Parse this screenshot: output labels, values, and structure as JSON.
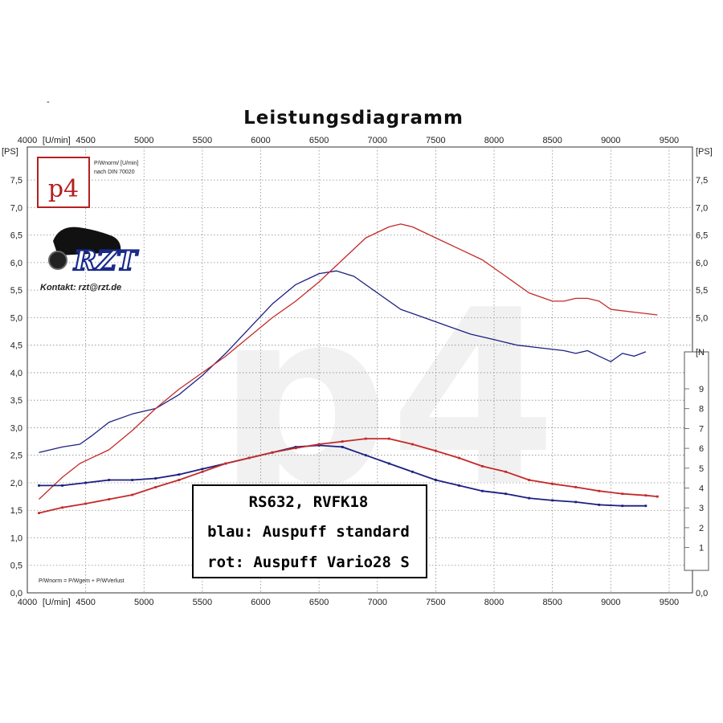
{
  "chart_data": {
    "type": "line",
    "title": "Leistungsdiagramm",
    "x_unit_label": "[U/min]",
    "y_unit_label": "[PS]",
    "right_unit_label": "[N",
    "xlim": [
      4000,
      9700
    ],
    "ylim": [
      0,
      8.1
    ],
    "x_ticks": [
      "4000",
      "4500",
      "5000",
      "5500",
      "6000",
      "6500",
      "7000",
      "7500",
      "8000",
      "8500",
      "9000",
      "9500"
    ],
    "y_ticks": [
      "0,0",
      "0,5",
      "1,0",
      "1,5",
      "2,0",
      "2,5",
      "3,0",
      "3,5",
      "4,0",
      "4,5",
      "5,0",
      "5,5",
      "6,0",
      "6,5",
      "7,0",
      "7,5"
    ],
    "y_ticks_top": "[PS]",
    "right_ticks_upper": [
      "7,5",
      "7,0",
      "6,5",
      "6,0",
      "5,5",
      "5,0"
    ],
    "right_ticks_lower": [
      "1",
      "2",
      "3",
      "4",
      "5",
      "6",
      "7",
      "8",
      "9"
    ],
    "right_tick_bottom": "0,0",
    "grid": true,
    "watermark": "p4",
    "logo": {
      "brand": "p4",
      "note_line1": "P/Wnorm/ [U/min]",
      "note_line2": "nach DIN 70020",
      "rzt_text": "RZT",
      "contact": "Kontakt: rzt@rzt.de"
    },
    "formula_note": "P/Wnorm = P/Wgem + P/WVerlust",
    "annotation": [
      "RS632, RVFK18",
      "blau: Auspuff standard",
      "rot: Auspuff Vario28 S"
    ],
    "series": [
      {
        "name": "Leistung blau (Auspuff standard)",
        "color": "#1c2080",
        "kind": "power",
        "x": [
          4100,
          4300,
          4450,
          4550,
          4700,
          4900,
          5100,
          5300,
          5500,
          5700,
          5900,
          6100,
          6300,
          6500,
          6650,
          6800,
          7000,
          7200,
          7400,
          7600,
          7800,
          8000,
          8200,
          8400,
          8600,
          8700,
          8800,
          8900,
          9000,
          9100,
          9200,
          9300
        ],
        "y": [
          2.55,
          2.65,
          2.7,
          2.85,
          3.1,
          3.25,
          3.35,
          3.6,
          3.95,
          4.35,
          4.8,
          5.25,
          5.6,
          5.8,
          5.85,
          5.75,
          5.45,
          5.15,
          5.0,
          4.85,
          4.7,
          4.6,
          4.5,
          4.45,
          4.4,
          4.35,
          4.4,
          4.3,
          4.2,
          4.35,
          4.3,
          4.38
        ]
      },
      {
        "name": "Leistung rot (Auspuff Vario28 S)",
        "color": "#c42a2a",
        "kind": "power",
        "x": [
          4100,
          4300,
          4450,
          4550,
          4700,
          4900,
          5100,
          5300,
          5500,
          5700,
          5900,
          6100,
          6300,
          6500,
          6700,
          6900,
          7100,
          7200,
          7300,
          7500,
          7700,
          7900,
          8100,
          8300,
          8500,
          8600,
          8700,
          8800,
          8900,
          9000,
          9200,
          9400
        ],
        "y": [
          1.7,
          2.1,
          2.35,
          2.45,
          2.6,
          2.95,
          3.35,
          3.7,
          4.0,
          4.3,
          4.65,
          5.0,
          5.3,
          5.65,
          6.05,
          6.45,
          6.65,
          6.7,
          6.65,
          6.45,
          6.25,
          6.05,
          5.75,
          5.45,
          5.3,
          5.3,
          5.35,
          5.35,
          5.3,
          5.15,
          5.1,
          5.05
        ]
      },
      {
        "name": "Drehmoment blau",
        "color": "#1c2080",
        "kind": "torque",
        "x": [
          4100,
          4300,
          4500,
          4700,
          4900,
          5100,
          5300,
          5500,
          5700,
          5900,
          6100,
          6300,
          6500,
          6700,
          6900,
          7100,
          7300,
          7500,
          7700,
          7900,
          8100,
          8300,
          8500,
          8700,
          8900,
          9100,
          9300
        ],
        "y": [
          1.95,
          1.95,
          2.0,
          2.05,
          2.05,
          2.08,
          2.15,
          2.25,
          2.35,
          2.45,
          2.55,
          2.65,
          2.68,
          2.65,
          2.5,
          2.35,
          2.2,
          2.05,
          1.95,
          1.85,
          1.8,
          1.72,
          1.68,
          1.65,
          1.6,
          1.58,
          1.58
        ]
      },
      {
        "name": "Drehmoment rot",
        "color": "#c42a2a",
        "kind": "torque",
        "x": [
          4100,
          4300,
          4500,
          4700,
          4900,
          5100,
          5300,
          5500,
          5700,
          5900,
          6100,
          6300,
          6500,
          6700,
          6900,
          7100,
          7300,
          7500,
          7700,
          7900,
          8100,
          8300,
          8500,
          8700,
          8900,
          9100,
          9300,
          9400
        ],
        "y": [
          1.45,
          1.55,
          1.62,
          1.7,
          1.78,
          1.92,
          2.05,
          2.2,
          2.35,
          2.45,
          2.55,
          2.63,
          2.7,
          2.75,
          2.8,
          2.8,
          2.7,
          2.58,
          2.45,
          2.3,
          2.2,
          2.05,
          1.98,
          1.92,
          1.85,
          1.8,
          1.77,
          1.75
        ]
      }
    ]
  }
}
